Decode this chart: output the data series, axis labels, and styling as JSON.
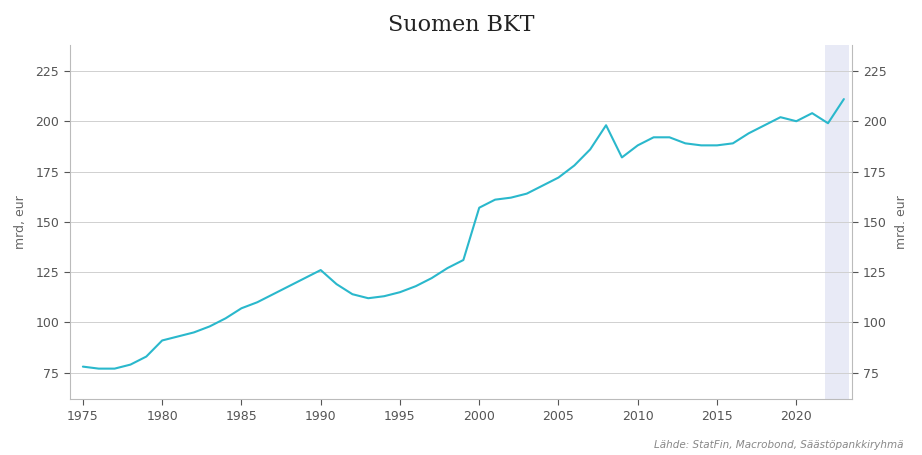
{
  "title": "Suomen BKT",
  "ylabel_left": "mrd, eur",
  "ylabel_right": "mrd. eur",
  "source": "Lähde: StatFin, Macrobond, Säästöpankkiryhmä",
  "line_color": "#2ab8cc",
  "background_color": "#ffffff",
  "grid_color": "#d0d0d0",
  "highlight_start": 2021.8,
  "highlight_end": 2023.3,
  "highlight_color": "#e8eaf6",
  "ylim": [
    62,
    238
  ],
  "yticks": [
    75,
    100,
    125,
    150,
    175,
    200,
    225
  ],
  "xlim": [
    1974.2,
    2023.5
  ],
  "xticks": [
    1975,
    1980,
    1985,
    1990,
    1995,
    2000,
    2005,
    2010,
    2015,
    2020
  ],
  "years": [
    1975,
    1976,
    1977,
    1978,
    1979,
    1980,
    1981,
    1982,
    1983,
    1984,
    1985,
    1986,
    1987,
    1988,
    1989,
    1990,
    1991,
    1992,
    1993,
    1994,
    1995,
    1996,
    1997,
    1998,
    1999,
    2000,
    2001,
    2002,
    2003,
    2004,
    2005,
    2006,
    2007,
    2008,
    2009,
    2010,
    2011,
    2012,
    2013,
    2014,
    2015,
    2016,
    2017,
    2018,
    2019,
    2020,
    2021,
    2022,
    2023
  ],
  "values": [
    78,
    77,
    77,
    79,
    83,
    91,
    93,
    95,
    98,
    102,
    107,
    110,
    114,
    118,
    122,
    126,
    119,
    114,
    112,
    113,
    115,
    118,
    122,
    127,
    131,
    157,
    161,
    162,
    164,
    168,
    172,
    178,
    186,
    198,
    182,
    188,
    192,
    192,
    189,
    188,
    188,
    189,
    194,
    198,
    202,
    200,
    204,
    199,
    211
  ]
}
